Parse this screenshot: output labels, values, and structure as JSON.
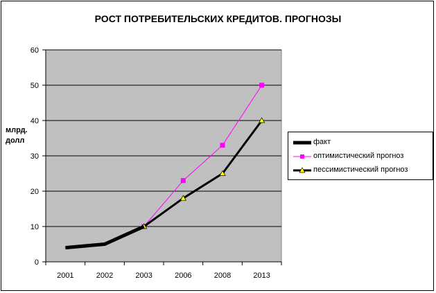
{
  "chart_data": {
    "type": "line",
    "title": "РОСТ ПОТРЕБИТЕЛЬСКИХ КРЕДИТОВ. ПРОГНОЗЫ",
    "ylabel": "млрд. долл",
    "xlabel": "",
    "categories": [
      "2001",
      "2002",
      "2003",
      "2006",
      "2008",
      "2013"
    ],
    "ylim": [
      0,
      60
    ],
    "yticks": [
      "0",
      "10",
      "20",
      "30",
      "40",
      "50",
      "60"
    ],
    "grid": true,
    "plot_background": "#c0c0c0",
    "legend_position": "right",
    "series": [
      {
        "name": "факт",
        "values": [
          4,
          5,
          10,
          null,
          null,
          null
        ],
        "color": "#000000",
        "marker": "none"
      },
      {
        "name": "оптимистический прогноз",
        "values": [
          null,
          null,
          10,
          23,
          33,
          50
        ],
        "color": "#ff00ff",
        "marker": "square"
      },
      {
        "name": "пессимистический прогноз",
        "values": [
          null,
          null,
          10,
          18,
          25,
          40
        ],
        "color": "#000000",
        "marker": "triangle"
      }
    ]
  }
}
